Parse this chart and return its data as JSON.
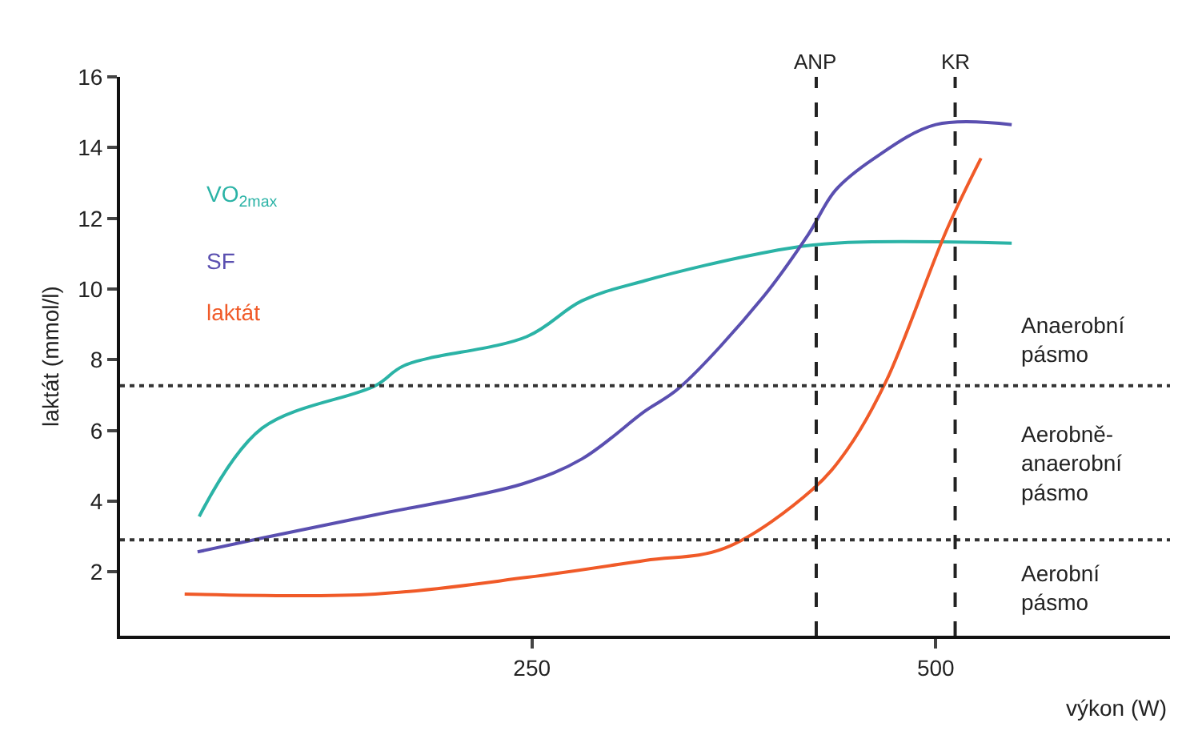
{
  "chart_data": {
    "type": "line",
    "xlabel": "výkon (W)",
    "ylabel": "laktát (mmol/l)",
    "xlim": [
      -5,
      645
    ],
    "ylim": [
      0.2,
      16
    ],
    "xticks": [
      250,
      500
    ],
    "yticks": [
      2,
      4,
      6,
      8,
      10,
      12,
      14,
      16
    ],
    "legend": "top left",
    "marker": "none",
    "line_style": "solid",
    "series": [
      {
        "name": "VO$_{2max}$",
        "color": "#2bb3a6",
        "x": [
          44,
          83,
          153,
          171,
          247,
          281,
          320,
          396,
          438,
          547
        ],
        "values": [
          3.57,
          6.07,
          7.27,
          7.84,
          8.66,
          9.67,
          10.24,
          11.05,
          11.3,
          11.3
        ]
      },
      {
        "name": "SF",
        "color": "#5a4fb0",
        "x": [
          43,
          83,
          153,
          244,
          281,
          320,
          341,
          393,
          421,
          438,
          462,
          500,
          547
        ],
        "values": [
          2.57,
          2.96,
          3.62,
          4.49,
          5.2,
          6.55,
          7.2,
          9.77,
          11.54,
          12.8,
          13.7,
          14.65,
          14.65
        ]
      },
      {
        "name": "laktát",
        "color": "#f05a28",
        "x": [
          35,
          153,
          247,
          320,
          369,
          424,
          445,
          469,
          507,
          528
        ],
        "values": [
          1.38,
          1.38,
          1.85,
          2.33,
          2.67,
          4.35,
          5.45,
          7.37,
          11.7,
          13.7
        ]
      }
    ],
    "ref_lines": [
      {
        "axis": "y",
        "value": 7.27,
        "line_style": "dotted",
        "color": "#333333"
      },
      {
        "axis": "y",
        "value": 2.91,
        "line_style": "dotted",
        "color": "#333333"
      },
      {
        "axis": "x",
        "value": 426,
        "label": "ANP",
        "line_style": "dashed",
        "color": "#222222"
      },
      {
        "axis": "x",
        "value": 512,
        "label": "KR",
        "line_style": "dashed",
        "color": "#222222"
      }
    ],
    "annotations": [
      "Anaerobní\npásmo",
      "Aerobně-\nanaerobní\npásmo",
      "Aerobní\npásmo"
    ]
  }
}
